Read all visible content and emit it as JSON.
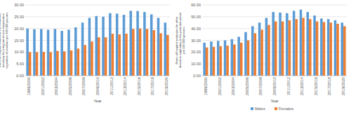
{
  "chart_data": [
    {
      "type": "bar",
      "y_label": "Rates of hospital admission for conditions involving the integument and temperature regulation of newborn per 100,000 persons",
      "x_label": "Year",
      "categories": [
        "1999/2000",
        null,
        "2001/2002",
        null,
        "2003/2004",
        null,
        "2005/2006",
        null,
        "2007/2008",
        null,
        "2009/2010",
        null,
        "2011/2012",
        null,
        "2013/2014",
        null,
        "2015/2016",
        null,
        "2017/2018",
        null,
        "2019/2020"
      ],
      "series": [
        {
          "name": "Males",
          "color": "#5b9bd5",
          "values": [
            20,
            19.7,
            19.8,
            19.5,
            19.8,
            19,
            19.5,
            20.5,
            22.5,
            24.5,
            25.3,
            25,
            26.5,
            26.3,
            25.8,
            27.5,
            27.4,
            27,
            26,
            24.5,
            22.5
          ]
        },
        {
          "name": "Females",
          "color": "#ed7d31",
          "values": [
            10,
            10,
            10.1,
            10,
            10.5,
            10.3,
            10.7,
            11.5,
            13,
            14.5,
            16.3,
            16.3,
            17.8,
            17.5,
            17.8,
            19.8,
            20,
            19.8,
            19.3,
            18,
            17.3
          ]
        }
      ],
      "ylim": [
        0,
        30
      ],
      "yticks": [
        {
          "value": 0,
          "label": "0.00"
        },
        {
          "value": 5,
          "label": "5.00"
        },
        {
          "value": 10,
          "label": "10.00"
        },
        {
          "value": 15,
          "label": "15.00"
        },
        {
          "value": 20,
          "label": "20.00"
        },
        {
          "value": 25,
          "label": "25.00"
        },
        {
          "value": 30,
          "label": "30.00"
        }
      ],
      "grid": true
    },
    {
      "type": "bar",
      "y_label": "Rates of hospital admission for other disorders originating in the perinatal period per 100,000 persons",
      "x_label": "Year",
      "categories": [
        "1999/2000",
        null,
        "2001/2002",
        null,
        "2003/2004",
        null,
        "2005/2006",
        null,
        "2007/2008",
        null,
        "2009/2010",
        null,
        "2011/2012",
        null,
        "2013/2014",
        null,
        "2015/2016",
        null,
        "2017/2018",
        null,
        "2019/2020"
      ],
      "series": [
        {
          "name": "Males",
          "color": "#5b9bd5",
          "values": [
            28,
            29,
            29.5,
            30,
            31,
            33,
            37,
            42,
            45,
            49,
            54,
            53.5,
            53,
            55,
            56,
            54,
            51,
            48.5,
            48,
            47,
            45
          ]
        },
        {
          "name": "Females",
          "color": "#ed7d31",
          "values": [
            24,
            24.5,
            25,
            25.5,
            26.5,
            28,
            30,
            36,
            39,
            43,
            46,
            46,
            47,
            48,
            49,
            48,
            46,
            45.5,
            45,
            44,
            42
          ]
        }
      ],
      "ylim": [
        0,
        60
      ],
      "yticks": [
        {
          "value": 0,
          "label": "0.00"
        },
        {
          "value": 10,
          "label": "10.00"
        },
        {
          "value": 20,
          "label": "20.00"
        },
        {
          "value": 30,
          "label": "30.00"
        },
        {
          "value": 40,
          "label": "40.00"
        },
        {
          "value": 50,
          "label": "50.00"
        },
        {
          "value": 60,
          "label": "60.00"
        }
      ],
      "grid": true,
      "legend": "bottom"
    }
  ]
}
